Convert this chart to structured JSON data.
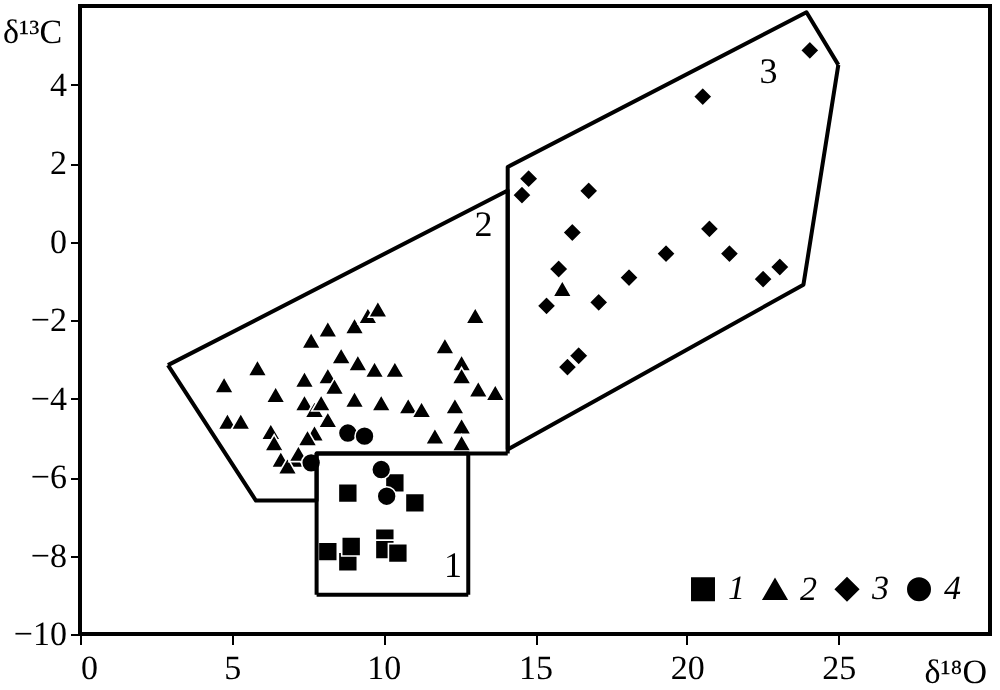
{
  "chart_data": {
    "type": "scatter",
    "xlabel": "δ¹⁸O",
    "ylabel": "δ¹³C",
    "xlim": [
      0,
      30
    ],
    "ylim": [
      -10,
      6
    ],
    "xticks": [
      0,
      5,
      10,
      15,
      20,
      25
    ],
    "yticks": [
      -10,
      -8,
      -6,
      -4,
      -2,
      0,
      2,
      4
    ],
    "grid": false,
    "legend": "bottom right",
    "series": [
      {
        "name": "1",
        "color": "#000000",
        "marker": "square",
        "x": [
          8.17,
          8.83,
          8.94,
          10.05,
          10.05,
          10.48,
          11.04,
          8.83,
          10.38
        ],
        "values": [
          -7.9,
          -8.16,
          -7.77,
          -7.56,
          -7.85,
          -7.94,
          -6.66,
          -6.41,
          -6.15
        ]
      },
      {
        "name": "2",
        "color": "#000000",
        "marker": "triangle",
        "x": [
          4.75,
          5.85,
          6.45,
          4.86,
          5.3,
          6.29,
          6.4,
          6.62,
          7.4,
          7.4,
          7.62,
          8.17,
          8.17,
          8.61,
          9.05,
          9.49,
          9.82,
          9.16,
          9.05,
          9.71,
          10.38,
          9.93,
          10.82,
          11.26,
          11.7,
          12.03,
          12.58,
          12.58,
          12.58,
          13.03,
          13.13,
          13.69,
          12.36,
          7.73,
          8.17,
          7.73,
          7.07,
          6.84,
          7.95,
          8.39,
          12.58,
          15.9,
          7.5,
          7.2
        ],
        "values": [
          -3.65,
          -3.22,
          -3.9,
          -4.58,
          -4.58,
          -4.84,
          -5.13,
          -5.55,
          -3.51,
          -4.11,
          -2.52,
          -2.23,
          -3.42,
          -2.91,
          -2.15,
          -1.89,
          -1.72,
          -3.09,
          -4.02,
          -3.26,
          -3.26,
          -4.11,
          -4.19,
          -4.28,
          -4.96,
          -2.66,
          -3.09,
          -3.42,
          -4.7,
          -1.89,
          -3.76,
          -3.85,
          -4.19,
          -4.28,
          -4.54,
          -4.88,
          -5.55,
          -5.72,
          -4.11,
          -3.69,
          -5.13,
          -1.2,
          -5.0,
          -5.4
        ]
      },
      {
        "name": "3",
        "color": "#000000",
        "marker": "diamond",
        "x": [
          24.06,
          20.53,
          14.79,
          14.57,
          16.77,
          16.23,
          20.75,
          15.78,
          19.32,
          21.41,
          18.1,
          23.07,
          22.52,
          15.38,
          17.1,
          16.44,
          16.07
        ],
        "values": [
          4.87,
          3.69,
          1.6,
          1.18,
          1.29,
          0.23,
          0.32,
          -0.7,
          -0.31,
          -0.31,
          -0.92,
          -0.65,
          -0.96,
          -1.64,
          -1.55,
          -2.91,
          -3.2
        ]
      },
      {
        "name": "4",
        "color": "#000000",
        "marker": "circle",
        "x": [
          7.62,
          8.83,
          9.38,
          9.93,
          10.11
        ],
        "values": [
          -5.64,
          -4.88,
          -4.96,
          -5.81,
          -6.49
        ]
      },
      {
        "type": "line",
        "color": "#000000",
        "x": [
          7.8,
          7.8,
          12.8,
          12.8
        ],
        "values": [
          -9.0,
          -5.4,
          -5.4,
          -9.0
        ]
      },
      {
        "type": "line",
        "color": "#000000",
        "x": [
          7.8,
          12.8
        ],
        "values": [
          -9.0,
          -9.0
        ]
      },
      {
        "type": "line",
        "color": "#000000",
        "x": [
          2.9,
          14.1,
          14.1
        ],
        "values": [
          -3.15,
          1.3,
          -5.4
        ]
      },
      {
        "type": "line",
        "color": "#000000",
        "x": [
          2.9,
          5.8,
          7.8,
          7.8,
          14.1
        ],
        "values": [
          -3.15,
          -6.6,
          -6.6,
          -5.4,
          -5.4
        ]
      },
      {
        "type": "line",
        "color": "#000000",
        "x": [
          14.1,
          14.1,
          23.95,
          25.0
        ],
        "values": [
          -5.3,
          1.9,
          5.84,
          4.5
        ]
      },
      {
        "type": "line",
        "color": "#000000",
        "x": [
          14.1,
          23.85,
          25.0
        ],
        "values": [
          -5.3,
          -1.1,
          4.5
        ]
      }
    ],
    "annotations": [
      "1",
      "2",
      "3"
    ]
  }
}
